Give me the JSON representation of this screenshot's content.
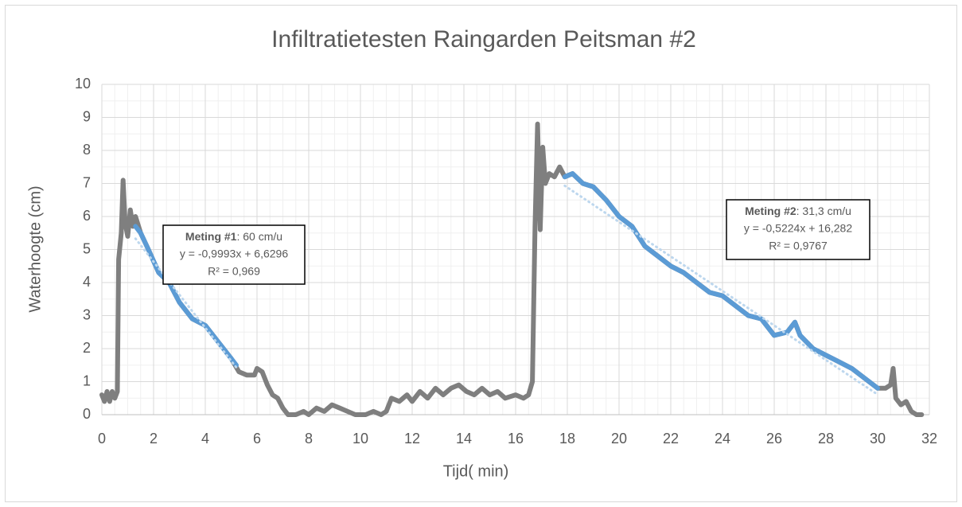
{
  "chart_data": {
    "type": "line",
    "title": "Infiltratietesten Raingarden Peitsman #2",
    "x_label": "Tijd( min)",
    "y_label": "Waterhoogte (cm)",
    "xlim": [
      0,
      32
    ],
    "xticks": [
      0,
      2,
      4,
      6,
      8,
      10,
      12,
      14,
      16,
      18,
      20,
      22,
      24,
      26,
      28,
      30,
      32
    ],
    "ylim": [
      0,
      10
    ],
    "yticks": [
      0,
      1,
      2,
      3,
      4,
      5,
      6,
      7,
      8,
      9,
      10
    ],
    "grid": true,
    "series": [
      {
        "color": "#7f7f7f",
        "style": "solid",
        "x": [
          0,
          0.1,
          0.2,
          0.3,
          0.4,
          0.5,
          0.6,
          0.65,
          0.75,
          0.82,
          0.9,
          1.0,
          1.1,
          1.2,
          1.3,
          1.5,
          1.8,
          2.2,
          2.6,
          3.0,
          3.5,
          4.0,
          4.5,
          5.0,
          5.3,
          5.6,
          5.9,
          6.0,
          6.2,
          6.4,
          6.6,
          6.8,
          7.0,
          7.2,
          7.5,
          7.8,
          8.0,
          8.3,
          8.6,
          8.9,
          9.2,
          9.5,
          9.8,
          10.2,
          10.5,
          10.8,
          11.0,
          11.2,
          11.5,
          11.8,
          12.0,
          12.3,
          12.6,
          12.9,
          13.2,
          13.5,
          13.8,
          14.1,
          14.4,
          14.7,
          15.0,
          15.3,
          15.6,
          16.0,
          16.3,
          16.5,
          16.65,
          16.75,
          16.85,
          16.95,
          17.05,
          17.15,
          17.3,
          17.5,
          17.7,
          17.9,
          18.2,
          18.6,
          19.0,
          19.5,
          20.0,
          20.5,
          21.0,
          21.5,
          22.0,
          22.5,
          23.0,
          23.5,
          24.0,
          24.5,
          25.0,
          25.5,
          26.0,
          26.5,
          26.8,
          27.0,
          27.5,
          28.0,
          28.5,
          29.0,
          29.5,
          30.0,
          30.3,
          30.5,
          30.6,
          30.7,
          30.9,
          31.1,
          31.3,
          31.5,
          31.7
        ],
        "values": [
          0.6,
          0.4,
          0.7,
          0.4,
          0.7,
          0.5,
          0.7,
          4.7,
          5.5,
          7.1,
          5.8,
          5.4,
          6.2,
          5.7,
          6.0,
          5.5,
          5.0,
          4.3,
          4.0,
          3.4,
          2.9,
          2.7,
          2.2,
          1.7,
          1.3,
          1.2,
          1.2,
          1.4,
          1.3,
          0.9,
          0.6,
          0.5,
          0.2,
          0,
          0,
          0.1,
          0,
          0.2,
          0.1,
          0.3,
          0.2,
          0.1,
          0,
          0,
          0.1,
          0,
          0.1,
          0.5,
          0.4,
          0.6,
          0.4,
          0.7,
          0.5,
          0.8,
          0.6,
          0.8,
          0.9,
          0.7,
          0.6,
          0.8,
          0.6,
          0.7,
          0.5,
          0.6,
          0.5,
          0.6,
          1.0,
          5.7,
          8.8,
          5.6,
          8.1,
          7.0,
          7.3,
          7.2,
          7.5,
          7.2,
          7.3,
          7.0,
          6.9,
          6.5,
          6.0,
          5.7,
          5.1,
          4.8,
          4.5,
          4.3,
          4.0,
          3.7,
          3.6,
          3.3,
          3.0,
          2.9,
          2.4,
          2.5,
          2.8,
          2.4,
          2.0,
          1.8,
          1.6,
          1.4,
          1.1,
          0.8,
          0.8,
          0.9,
          1.4,
          0.5,
          0.3,
          0.4,
          0.1,
          0,
          0
        ]
      },
      {
        "color": "#5b9bd5",
        "style": "solid",
        "x": [
          1.3,
          1.5,
          1.8,
          2.2,
          2.6,
          3.0,
          3.5,
          4.0,
          4.5,
          5.0,
          5.2
        ],
        "values": [
          5.7,
          5.5,
          5.0,
          4.3,
          4.0,
          3.4,
          2.9,
          2.7,
          2.2,
          1.7,
          1.5
        ]
      },
      {
        "color": "#5b9bd5",
        "style": "solid",
        "x": [
          17.9,
          18.2,
          18.6,
          19.0,
          19.5,
          20.0,
          20.5,
          21.0,
          21.5,
          22.0,
          22.5,
          23.0,
          23.5,
          24.0,
          24.5,
          25.0,
          25.5,
          26.0,
          26.5,
          26.8,
          27.0,
          27.5,
          28.0,
          28.5,
          29.0,
          29.5,
          30.0
        ],
        "values": [
          7.2,
          7.3,
          7.0,
          6.9,
          6.5,
          6.0,
          5.7,
          5.1,
          4.8,
          4.5,
          4.3,
          4.0,
          3.7,
          3.6,
          3.3,
          3.0,
          2.9,
          2.4,
          2.5,
          2.8,
          2.4,
          2.0,
          1.8,
          1.6,
          1.4,
          1.1,
          0.8
        ]
      },
      {
        "color": "#bdd7ee",
        "style": "dotted",
        "x": [
          1.3,
          5.2
        ],
        "values": [
          5.33,
          1.43
        ]
      },
      {
        "color": "#bdd7ee",
        "style": "dotted",
        "x": [
          17.9,
          30
        ],
        "values": [
          6.93,
          0.61
        ]
      }
    ],
    "annotations": [
      {
        "title": "Meting #1",
        "text": ": 60 cm/u",
        "lines": [
          "y = -0,9993x + 6,6296",
          "R² = 0,969"
        ]
      },
      {
        "title": "Meting #2",
        "text": ": 31,3 cm/u",
        "lines": [
          "y = -0,5224x + 16,282",
          "R² = 0,9767"
        ]
      }
    ]
  }
}
